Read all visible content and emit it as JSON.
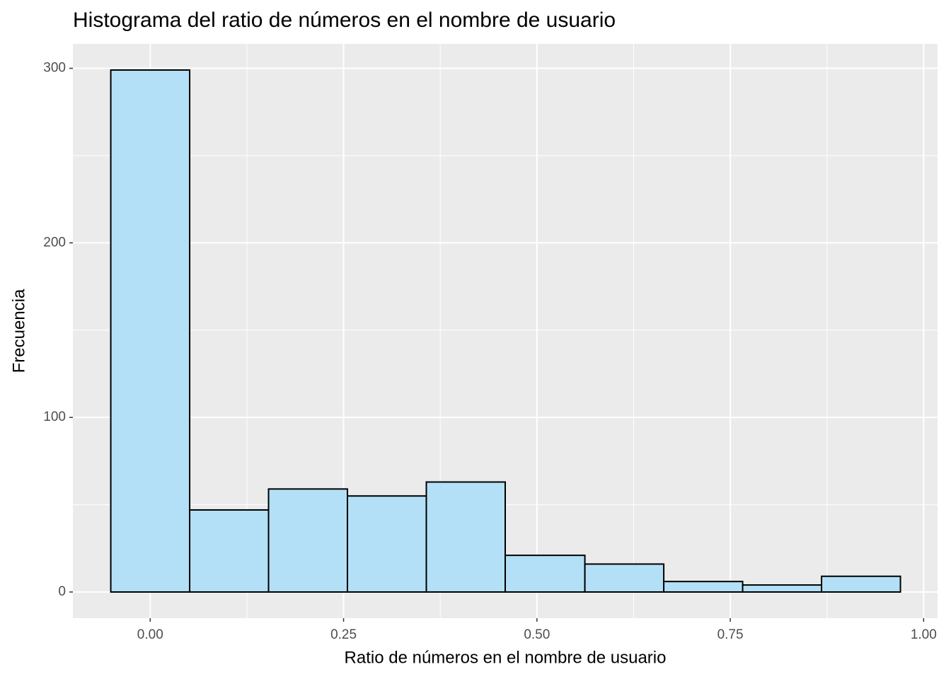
{
  "chart_data": {
    "type": "histogram",
    "title": "Histograma del ratio de números en el nombre de usuario",
    "xlabel": "Ratio de números en el nombre de usuario",
    "ylabel": "Frecuencia",
    "bins": [
      -0.051,
      0.051,
      0.153,
      0.255,
      0.357,
      0.459,
      0.562,
      0.664,
      0.766,
      0.868,
      0.97
    ],
    "values": [
      299,
      47,
      59,
      55,
      63,
      21,
      16,
      6,
      4,
      9
    ],
    "color": "#b3e0f7",
    "edgecolor": "#000000",
    "xlim": [
      -0.1,
      1.018
    ],
    "ylim": [
      -15,
      314
    ],
    "xticks": [
      {
        "value": 0,
        "label": "0.00"
      },
      {
        "value": 0.25,
        "label": "0.25"
      },
      {
        "value": 0.5,
        "label": "0.50"
      },
      {
        "value": 0.75,
        "label": "0.75"
      },
      {
        "value": 1,
        "label": "1.00"
      }
    ],
    "yticks": [
      0,
      100,
      200,
      300
    ],
    "grid": true
  }
}
